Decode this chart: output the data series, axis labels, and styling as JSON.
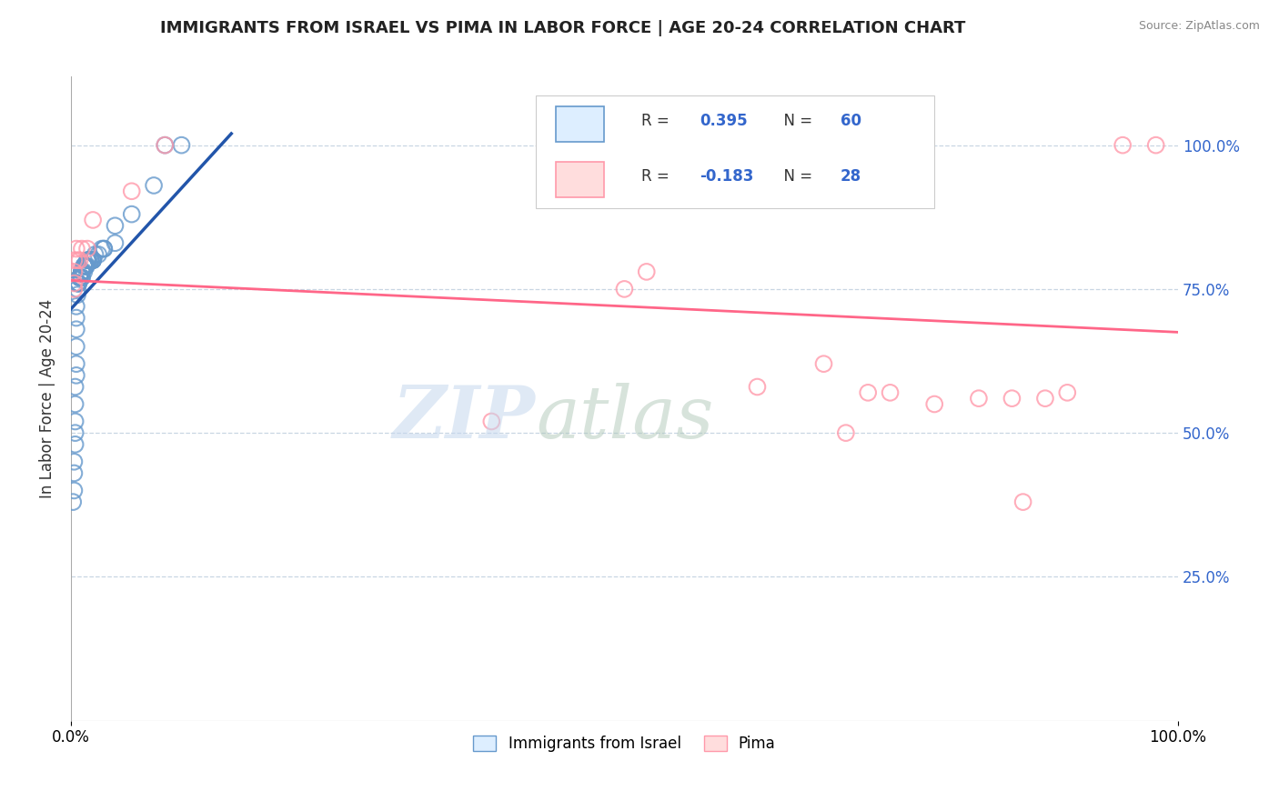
{
  "title": "IMMIGRANTS FROM ISRAEL VS PIMA IN LABOR FORCE | AGE 20-24 CORRELATION CHART",
  "source": "Source: ZipAtlas.com",
  "ylabel": "In Labor Force | Age 20-24",
  "legend_label1": "Immigrants from Israel",
  "legend_label2": "Pima",
  "R1": 0.395,
  "N1": 60,
  "R2": -0.183,
  "N2": 28,
  "blue_color": "#6699CC",
  "pink_color": "#FF99AA",
  "blue_line_color": "#2255AA",
  "pink_line_color": "#FF6688",
  "background_color": "#FFFFFF",
  "blue_points_x": [
    0.085,
    0.1,
    0.075,
    0.055,
    0.04,
    0.04,
    0.03,
    0.03,
    0.028,
    0.025,
    0.022,
    0.02,
    0.02,
    0.02,
    0.018,
    0.018,
    0.018,
    0.016,
    0.016,
    0.015,
    0.015,
    0.014,
    0.014,
    0.013,
    0.012,
    0.012,
    0.012,
    0.012,
    0.012,
    0.01,
    0.01,
    0.01,
    0.01,
    0.01,
    0.01,
    0.008,
    0.008,
    0.008,
    0.007,
    0.007,
    0.007,
    0.006,
    0.006,
    0.006,
    0.006,
    0.005,
    0.005,
    0.005,
    0.005,
    0.005,
    0.005,
    0.004,
    0.004,
    0.004,
    0.004,
    0.004,
    0.003,
    0.003,
    0.003,
    0.002
  ],
  "blue_points_y": [
    1.0,
    1.0,
    0.93,
    0.88,
    0.86,
    0.83,
    0.82,
    0.82,
    0.82,
    0.81,
    0.81,
    0.8,
    0.8,
    0.8,
    0.8,
    0.8,
    0.8,
    0.8,
    0.8,
    0.8,
    0.8,
    0.79,
    0.79,
    0.79,
    0.79,
    0.79,
    0.79,
    0.79,
    0.78,
    0.78,
    0.78,
    0.78,
    0.78,
    0.77,
    0.77,
    0.77,
    0.77,
    0.77,
    0.76,
    0.76,
    0.76,
    0.76,
    0.76,
    0.75,
    0.74,
    0.72,
    0.7,
    0.68,
    0.65,
    0.62,
    0.6,
    0.58,
    0.55,
    0.52,
    0.5,
    0.48,
    0.45,
    0.43,
    0.4,
    0.38
  ],
  "pink_points_x": [
    0.085,
    0.055,
    0.02,
    0.015,
    0.01,
    0.008,
    0.006,
    0.005,
    0.003,
    0.003,
    0.003,
    0.003,
    0.38,
    0.5,
    0.52,
    0.62,
    0.68,
    0.7,
    0.72,
    0.74,
    0.78,
    0.82,
    0.85,
    0.86,
    0.88,
    0.9,
    0.95,
    0.98
  ],
  "pink_points_y": [
    1.0,
    0.92,
    0.87,
    0.82,
    0.82,
    0.8,
    0.8,
    0.82,
    0.8,
    0.78,
    0.76,
    0.75,
    0.52,
    0.75,
    0.78,
    0.58,
    0.62,
    0.5,
    0.57,
    0.57,
    0.55,
    0.56,
    0.56,
    0.38,
    0.56,
    0.57,
    1.0,
    1.0
  ],
  "blue_trendline_x": [
    0.0,
    0.145
  ],
  "blue_trendline_y": [
    0.715,
    1.02
  ],
  "pink_trendline_x": [
    0.0,
    1.0
  ],
  "pink_trendline_y": [
    0.765,
    0.675
  ],
  "xlim": [
    0.0,
    1.0
  ],
  "ylim": [
    0.0,
    1.12
  ],
  "yticks": [
    0.25,
    0.5,
    0.75,
    1.0
  ],
  "ytick_labels": [
    "25.0%",
    "50.0%",
    "75.0%",
    "100.0%"
  ],
  "xtick_positions": [
    0.0,
    1.0
  ],
  "xtick_labels": [
    "0.0%",
    "100.0%"
  ]
}
